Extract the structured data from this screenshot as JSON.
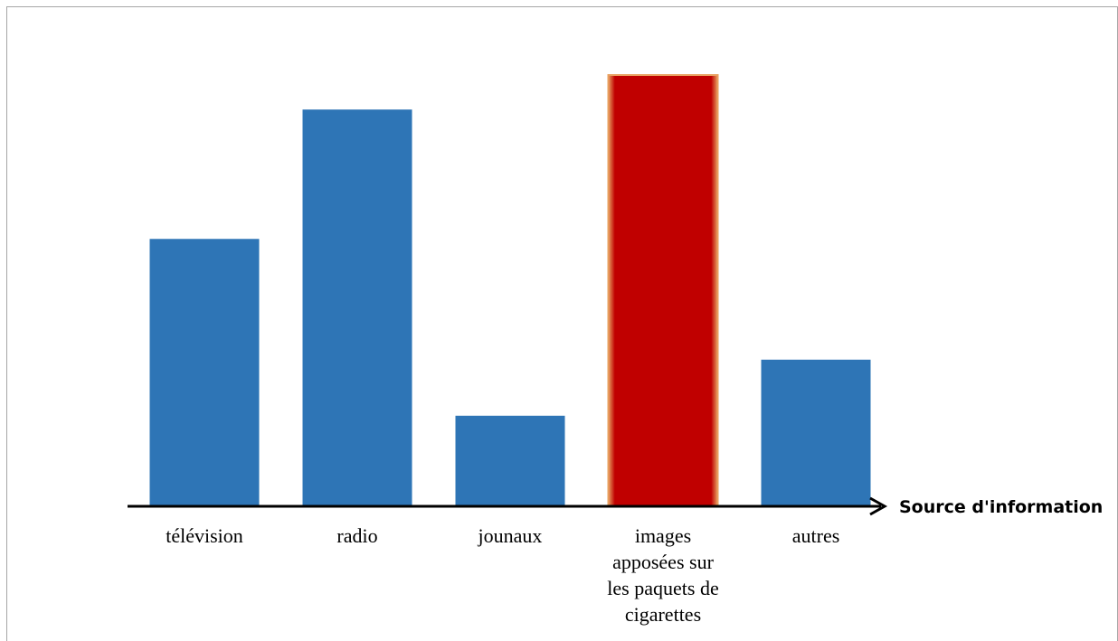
{
  "chart_data": {
    "type": "bar",
    "xlabel": "Source d'information",
    "ylabel": "",
    "ylim": [
      0,
      100
    ],
    "grid": false,
    "legend": "none",
    "categories": [
      [
        "télévision"
      ],
      [
        "radio"
      ],
      [
        "jounaux"
      ],
      [
        "images",
        "apposées sur",
        "les paquets de",
        "cigarettes"
      ],
      [
        "autres"
      ]
    ],
    "values": [
      62,
      92,
      21,
      100,
      34
    ],
    "colors": [
      "#2e75b6",
      "#2e75b6",
      "#2e75b6",
      "#c00000",
      "#2e75b6"
    ],
    "highlight_index": 3
  }
}
